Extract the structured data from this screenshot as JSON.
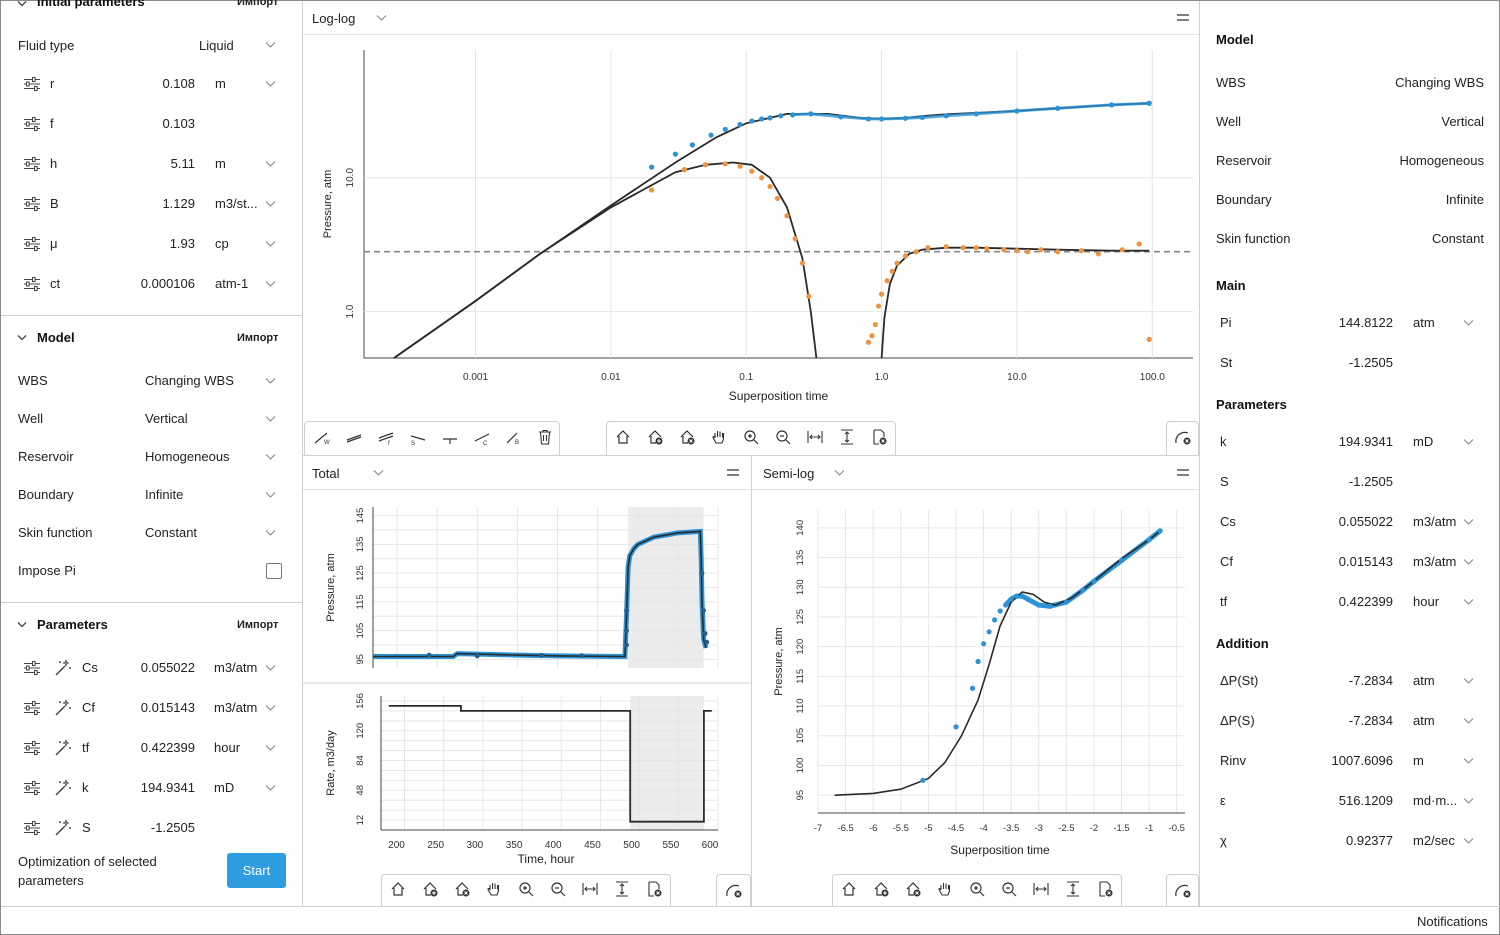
{
  "left": {
    "initial": {
      "title": "Initial parameters",
      "import": "Импорт",
      "fluid_label": "Fluid type",
      "fluid_value": "Liquid",
      "rows": [
        {
          "label": "r",
          "value": "0.108",
          "unit": "m"
        },
        {
          "label": "f",
          "value": "0.103",
          "unit": ""
        },
        {
          "label": "h",
          "value": "5.11",
          "unit": "m"
        },
        {
          "label": "B",
          "value": "1.129",
          "unit": "m3/st..."
        },
        {
          "label": "μ",
          "value": "1.93",
          "unit": "cp"
        },
        {
          "label": "ct",
          "value": "0.000106",
          "unit": "atm-1"
        }
      ]
    },
    "model": {
      "title": "Model",
      "import": "Импорт",
      "rows": [
        {
          "label": "WBS",
          "value": "Changing WBS"
        },
        {
          "label": "Well",
          "value": "Vertical"
        },
        {
          "label": "Reservoir",
          "value": "Homogeneous"
        },
        {
          "label": "Boundary",
          "value": "Infinite"
        },
        {
          "label": "Skin function",
          "value": "Constant"
        }
      ],
      "impose_label": "Impose Pi"
    },
    "parameters": {
      "title": "Parameters",
      "import": "Импорт",
      "rows": [
        {
          "label": "Cs",
          "value": "0.055022",
          "unit": "m3/atm"
        },
        {
          "label": "Cf",
          "value": "0.015143",
          "unit": "m3/atm"
        },
        {
          "label": "tf",
          "value": "0.422399",
          "unit": "hour"
        },
        {
          "label": "k",
          "value": "194.9341",
          "unit": "mD"
        },
        {
          "label": "S",
          "value": "-1.2505",
          "unit": ""
        }
      ],
      "optimization_line1": "Optimization of selected",
      "optimization_line2": "parameters",
      "start_label": "Start"
    }
  },
  "right": {
    "model": {
      "title": "Model",
      "rows": [
        {
          "label": "WBS",
          "value": "Changing WBS"
        },
        {
          "label": "Well",
          "value": "Vertical"
        },
        {
          "label": "Reservoir",
          "value": "Homogeneous"
        },
        {
          "label": "Boundary",
          "value": "Infinite"
        },
        {
          "label": "Skin function",
          "value": "Constant"
        }
      ]
    },
    "main": {
      "title": "Main",
      "rows": [
        {
          "label": "Pi",
          "value": "144.8122",
          "unit": "atm"
        },
        {
          "label": "St",
          "value": "-1.2505",
          "unit": ""
        }
      ]
    },
    "parameters": {
      "title": "Parameters",
      "rows": [
        {
          "label": "k",
          "value": "194.9341",
          "unit": "mD"
        },
        {
          "label": "S",
          "value": "-1.2505",
          "unit": ""
        },
        {
          "label": "Cs",
          "value": "0.055022",
          "unit": "m3/atm"
        },
        {
          "label": "Cf",
          "value": "0.015143",
          "unit": "m3/atm"
        },
        {
          "label": "tf",
          "value": "0.422399",
          "unit": "hour"
        }
      ]
    },
    "addition": {
      "title": "Addition",
      "rows": [
        {
          "label": "ΔP(St)",
          "value": "-7.2834",
          "unit": "atm"
        },
        {
          "label": "ΔP(S)",
          "value": "-7.2834",
          "unit": "atm"
        },
        {
          "label": "Rinv",
          "value": "1007.6096",
          "unit": "m"
        },
        {
          "label": "ε",
          "value": "516.1209",
          "unit": "md·m..."
        },
        {
          "label": "χ",
          "value": "0.92377",
          "unit": "m2/sec"
        }
      ]
    }
  },
  "panels": {
    "loglog_title": "Log-log",
    "total_title": "Total",
    "semilog_title": "Semi-log"
  },
  "status": {
    "notifications": "Notifications"
  },
  "colors": {
    "accent": "#2e9de0",
    "blue_points": "#2b93d6",
    "orange_points": "#ef9340",
    "model_line": "#2a2a2a"
  },
  "chart_data": [
    {
      "id": "loglog",
      "type": "scatter",
      "xlabel": "Superposition time",
      "ylabel": "Pressure, atm",
      "xscale": "log",
      "yscale": "log",
      "xlim": [
        0.00015,
        200
      ],
      "ylim": [
        0.45,
        90
      ],
      "xticks": [
        0.001,
        0.01,
        0.1,
        1.0,
        10.0,
        100.0
      ],
      "xtick_labels": [
        "0.001",
        "0.01",
        "0.1",
        "1.0",
        "10.0",
        "100.0"
      ],
      "yticks": [
        1.0,
        10.0
      ],
      "ytick_labels": [
        "1.0",
        "10.0"
      ],
      "hline": 2.8,
      "series": [
        {
          "role": "pressure-points",
          "color": "#2b93d6",
          "x": [
            0.02,
            0.03,
            0.04,
            0.055,
            0.07,
            0.09,
            0.11,
            0.13,
            0.15,
            0.18,
            0.22,
            0.3,
            0.5,
            0.8,
            1.0,
            1.5,
            2,
            3,
            5,
            10,
            20,
            50,
            95
          ],
          "y": [
            12,
            15,
            17.6,
            20.8,
            23,
            25,
            26.5,
            27.5,
            28,
            29,
            29.5,
            30,
            28.5,
            27.5,
            27.5,
            27.8,
            28.2,
            29,
            30,
            31.5,
            33,
            35,
            36
          ]
        },
        {
          "role": "derivative-points",
          "color": "#ef9340",
          "x": [
            0.02,
            0.035,
            0.05,
            0.07,
            0.09,
            0.11,
            0.13,
            0.15,
            0.17,
            0.2,
            0.23,
            0.26,
            0.29,
            0.8,
            0.85,
            0.9,
            0.95,
            1.0,
            1.1,
            1.2,
            1.3,
            1.5,
            1.8,
            2.2,
            3,
            4,
            5,
            6,
            8,
            10,
            12,
            15,
            20,
            30,
            40,
            60,
            80,
            95
          ],
          "y": [
            8.1,
            11.5,
            12.5,
            12.7,
            12.2,
            11.2,
            10.0,
            8.6,
            7.0,
            5.2,
            3.5,
            2.3,
            1.3,
            0.59,
            0.66,
            0.8,
            1.1,
            1.35,
            1.7,
            2.0,
            2.3,
            2.6,
            2.8,
            3.0,
            3.05,
            3.0,
            3.0,
            2.95,
            2.9,
            2.85,
            2.8,
            2.9,
            2.8,
            2.85,
            2.7,
            2.9,
            3.2,
            0.62
          ]
        }
      ],
      "lines": [
        {
          "role": "pressure-model",
          "x": [
            0.00025,
            0.001,
            0.003,
            0.01,
            0.03,
            0.06,
            0.1,
            0.2,
            0.4,
            0.7,
            1.0,
            1.5,
            2,
            3,
            5,
            10,
            20,
            50,
            95
          ],
          "y": [
            0.45,
            1.2,
            2.7,
            6.2,
            13,
            20,
            25.5,
            30,
            30,
            28,
            27.5,
            28,
            28.8,
            29.8,
            30.5,
            31.6,
            33,
            35,
            36
          ]
        },
        {
          "role": "derivative-model",
          "x": [
            0.00025,
            0.001,
            0.003,
            0.01,
            0.03,
            0.05,
            0.08,
            0.11,
            0.15,
            0.2,
            0.26,
            0.3,
            0.33,
            1.0,
            1.05,
            1.15,
            1.3,
            1.6,
            2,
            3,
            5,
            10,
            20,
            50,
            95
          ],
          "y": [
            0.45,
            1.2,
            2.7,
            6.0,
            11.0,
            12.5,
            13.0,
            12.5,
            10.0,
            6.0,
            2.5,
            1.0,
            0.45,
            0.45,
            0.9,
            1.6,
            2.2,
            2.7,
            2.9,
            3.0,
            3.0,
            2.95,
            2.9,
            2.85,
            2.85
          ]
        }
      ]
    },
    {
      "id": "total-pressure",
      "type": "line",
      "ylabel": "Pressure, atm",
      "xlim": [
        170,
        600
      ],
      "ylim": [
        92,
        148
      ],
      "yticks": [
        95,
        105,
        115,
        125,
        135,
        145
      ],
      "highlight_x": [
        488,
        582
      ],
      "series": [
        {
          "role": "pressure",
          "x": [
            170,
            200,
            270,
            275,
            350,
            400,
            480,
            484,
            486,
            488,
            490,
            495,
            500,
            520,
            550,
            578,
            579,
            580,
            582,
            585
          ],
          "y": [
            96,
            96,
            96,
            97,
            96.5,
            96.2,
            96,
            96,
            110,
            127,
            131,
            133.5,
            135,
            137.5,
            139,
            139.5,
            130,
            115,
            102,
            99
          ]
        }
      ]
    },
    {
      "id": "total-rate",
      "type": "line",
      "xlabel": "Time, hour",
      "ylabel": "Rate, m3/day",
      "xlim": [
        170,
        600
      ],
      "ylim": [
        0,
        162
      ],
      "xticks": [
        200,
        250,
        300,
        350,
        400,
        450,
        500,
        550,
        600
      ],
      "yticks": [
        12,
        48,
        84,
        120,
        156
      ],
      "highlight_x": [
        488,
        582
      ],
      "series": [
        {
          "role": "rate",
          "x": [
            180,
            272,
            272,
            488,
            488,
            582,
            582,
            592
          ],
          "y": [
            150,
            150,
            144,
            144,
            10,
            10,
            144,
            144
          ]
        }
      ]
    },
    {
      "id": "semilog",
      "type": "scatter",
      "xlabel": "Superposition time",
      "ylabel": "Pressure, atm",
      "xlim": [
        -7,
        -0.35
      ],
      "ylim": [
        92,
        143
      ],
      "xticks": [
        -7,
        -6.5,
        -6,
        -5.5,
        -5,
        -4.5,
        -4,
        -3.5,
        -3,
        -2.5,
        -2,
        -1.5,
        -1,
        -0.5
      ],
      "yticks": [
        95,
        100,
        105,
        110,
        115,
        120,
        125,
        130,
        135,
        140
      ],
      "series": [
        {
          "role": "pressure-points",
          "color": "#2b93d6",
          "x": [
            -5.1,
            -4.5,
            -4.2,
            -4.1,
            -4.0,
            -3.9,
            -3.8,
            -3.7,
            -3.6,
            -3.5,
            -3.4,
            -3.3,
            -3.2,
            -3.0,
            -2.8,
            -2.5,
            -2.2,
            -2.0,
            -1.5,
            -1.0,
            -0.8
          ],
          "y": [
            97.5,
            106.5,
            113,
            117.5,
            120.5,
            122.5,
            124.5,
            126,
            127,
            128,
            128.5,
            128.5,
            128,
            127,
            126.8,
            127.5,
            129.5,
            131,
            134.5,
            138,
            139.5
          ]
        }
      ],
      "lines": [
        {
          "role": "pressure-model",
          "x": [
            -6.7,
            -6.0,
            -5.5,
            -5.0,
            -4.7,
            -4.4,
            -4.1,
            -3.9,
            -3.7,
            -3.5,
            -3.3,
            -3.1,
            -2.9,
            -2.7,
            -2.4,
            -2.0,
            -1.5,
            -1.0,
            -0.8
          ],
          "y": [
            95,
            95.3,
            96,
            97.8,
            100.5,
            105,
            111,
            117,
            123.5,
            127.5,
            129.2,
            128.8,
            127.5,
            127,
            128.2,
            131,
            134.8,
            138,
            139.5
          ]
        }
      ]
    }
  ]
}
